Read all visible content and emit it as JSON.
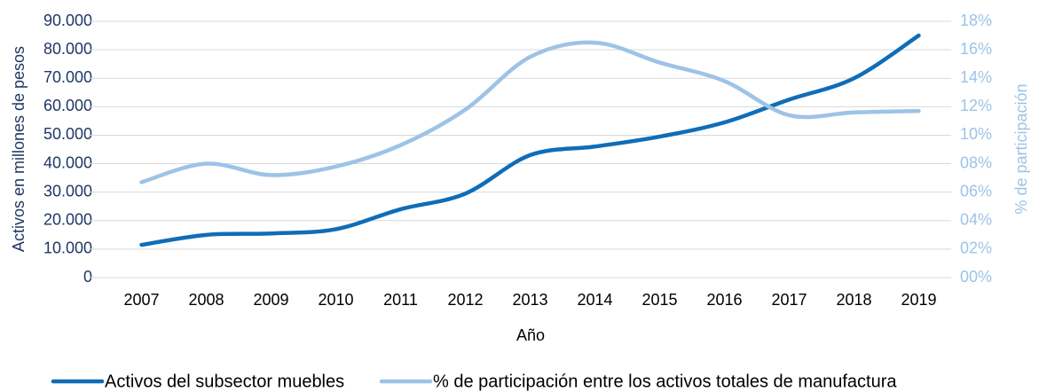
{
  "chart_data": {
    "type": "line",
    "x_label": "Año",
    "y_label": "Activos en millones de pesos",
    "y2_label": "% de participación",
    "categories": [
      "2007",
      "2008",
      "2009",
      "2010",
      "2011",
      "2012",
      "2013",
      "2014",
      "2015",
      "2016",
      "2017",
      "2018",
      "2019"
    ],
    "series": [
      {
        "name": "Activos del subsector muebles",
        "color": "#0f6db8",
        "values": [
          11500,
          15000,
          15500,
          17000,
          24000,
          29500,
          43000,
          46000,
          49500,
          54500,
          62500,
          70000,
          85000
        ]
      },
      {
        "name": "% de participación entre los activos totales de manufactura",
        "color": "#9dc3e6",
        "axis": "y2",
        "values": [
          6.7,
          8.0,
          7.2,
          7.8,
          9.3,
          11.8,
          15.5,
          16.5,
          15.1,
          13.8,
          11.4,
          11.6,
          11.7
        ]
      }
    ],
    "ylim": [
      0,
      90000
    ],
    "yticks": [
      0,
      {
        "value": 10000,
        "label": "10.000"
      },
      {
        "value": 20000,
        "label": "20.000"
      },
      {
        "value": 30000,
        "label": "30.000"
      },
      {
        "value": 40000,
        "label": "40.000"
      },
      {
        "value": 50000,
        "label": "50.000"
      },
      {
        "value": 60000,
        "label": "60.000"
      },
      {
        "value": 70000,
        "label": "70.000"
      },
      {
        "value": 80000,
        "label": "80.000"
      },
      {
        "value": 90000,
        "label": "90.000"
      }
    ],
    "y2lim": [
      0,
      18
    ],
    "y2ticks": [
      {
        "value": 0,
        "label": "00%"
      },
      {
        "value": 2,
        "label": "02%"
      },
      {
        "value": 4,
        "label": "04%"
      },
      {
        "value": 6,
        "label": "06%"
      },
      {
        "value": 8,
        "label": "08%"
      },
      {
        "value": 10,
        "label": "10%"
      },
      {
        "value": 12,
        "label": "12%"
      },
      {
        "value": 14,
        "label": "14%"
      },
      {
        "value": 16,
        "label": "16%"
      },
      {
        "value": 18,
        "label": "18%"
      }
    ],
    "grid": true,
    "legend": "bottom"
  }
}
